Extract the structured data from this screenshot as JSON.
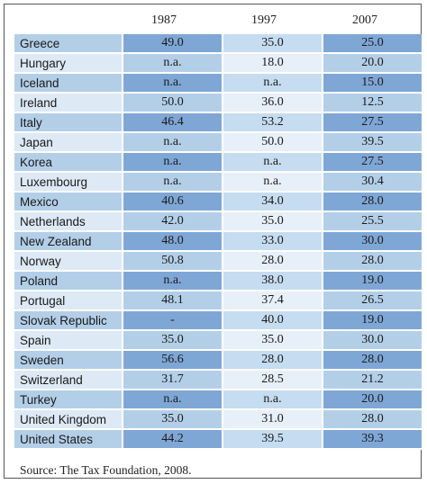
{
  "columns": [
    "1987",
    "1997",
    "2007"
  ],
  "rows": [
    {
      "country": "Greece",
      "v1987": "49.0",
      "v1997": "35.0",
      "v2007": "25.0"
    },
    {
      "country": "Hungary",
      "v1987": "n.a.",
      "v1997": "18.0",
      "v2007": "20.0"
    },
    {
      "country": "Iceland",
      "v1987": "n.a.",
      "v1997": "n.a.",
      "v2007": "15.0"
    },
    {
      "country": "Ireland",
      "v1987": "50.0",
      "v1997": "36.0",
      "v2007": "12.5"
    },
    {
      "country": "Italy",
      "v1987": "46.4",
      "v1997": "53.2",
      "v2007": "27.5"
    },
    {
      "country": "Japan",
      "v1987": "n.a.",
      "v1997": "50.0",
      "v2007": "39.5"
    },
    {
      "country": "Korea",
      "v1987": "n.a.",
      "v1997": "n.a.",
      "v2007": "27.5"
    },
    {
      "country": "Luxembourg",
      "v1987": "n.a.",
      "v1997": "n.a.",
      "v2007": "30.4"
    },
    {
      "country": "Mexico",
      "v1987": "40.6",
      "v1997": "34.0",
      "v2007": "28.0"
    },
    {
      "country": "Netherlands",
      "v1987": "42.0",
      "v1997": "35.0",
      "v2007": "25.5"
    },
    {
      "country": "New Zealand",
      "v1987": "48.0",
      "v1997": "33.0",
      "v2007": "30.0"
    },
    {
      "country": "Norway",
      "v1987": "50.8",
      "v1997": "28.0",
      "v2007": "28.0"
    },
    {
      "country": "Poland",
      "v1987": "n.a.",
      "v1997": "38.0",
      "v2007": "19.0"
    },
    {
      "country": "Portugal",
      "v1987": "48.1",
      "v1997": "37.4",
      "v2007": "26.5"
    },
    {
      "country": "Slovak Republic",
      "v1987": "-",
      "v1997": "40.0",
      "v2007": "19.0"
    },
    {
      "country": "Spain",
      "v1987": "35.0",
      "v1997": "35.0",
      "v2007": "30.0"
    },
    {
      "country": "Sweden",
      "v1987": "56.6",
      "v1997": "28.0",
      "v2007": "28.0"
    },
    {
      "country": "Switzerland",
      "v1987": "31.7",
      "v1997": "28.5",
      "v2007": "21.2"
    },
    {
      "country": "Turkey",
      "v1987": "n.a.",
      "v1997": "n.a.",
      "v2007": "20.0"
    },
    {
      "country": "United Kingdom",
      "v1987": "35.0",
      "v1997": "31.0",
      "v2007": "28.0"
    },
    {
      "country": "United States",
      "v1987": "44.2",
      "v1997": "39.5",
      "v2007": "39.3"
    }
  ],
  "source": "Source: The Tax Foundation, 2008.",
  "colors": {
    "dark_blue": "#7fa7d6",
    "mid_blue": "#b3cfe8",
    "light_blue": "#c6dcf0",
    "pale_blue": "#dde9f5"
  }
}
